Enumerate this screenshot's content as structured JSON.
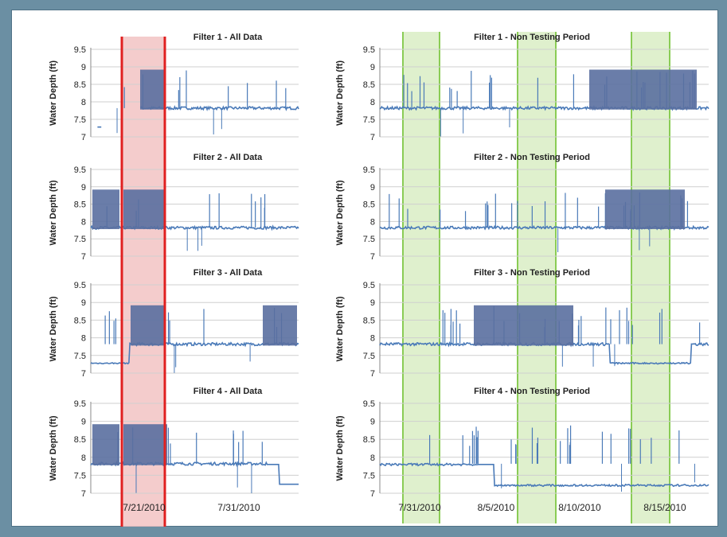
{
  "colors": {
    "series": "#4a7ab8",
    "dense": "#5a6fa0",
    "red_band_fill": "#f2c3c3",
    "red_band_edge": "#e02020",
    "green_band_fill": "#dbeec8",
    "green_band_edge": "#8acc55",
    "grid": "#cfcfcf"
  },
  "chart_data": {
    "type": "line",
    "y_label": "Water Depth (ft)",
    "y_ticks": [
      "9.5",
      "9",
      "8.5",
      "8",
      "7.5",
      "7"
    ],
    "ylim": [
      7,
      9.5
    ],
    "left_x_ticks": [
      "7/21/2010",
      "7/31/2010"
    ],
    "right_x_ticks": [
      "7/31/2010",
      "8/5/2010",
      "8/10/2010",
      "8/15/2010"
    ],
    "panels": [
      {
        "column": "left",
        "row": 0,
        "title": "Filter 1 - All Data"
      },
      {
        "column": "left",
        "row": 1,
        "title": "Filter 2 - All Data"
      },
      {
        "column": "left",
        "row": 2,
        "title": "Filter 3 - All Data"
      },
      {
        "column": "left",
        "row": 3,
        "title": "Filter 4 - All Data"
      },
      {
        "column": "right",
        "row": 0,
        "title": "Filter 1 - Non Testing Period"
      },
      {
        "column": "right",
        "row": 1,
        "title": "Filter 2 - Non Testing Period"
      },
      {
        "column": "right",
        "row": 2,
        "title": "Filter 3 - Non Testing Period"
      },
      {
        "column": "right",
        "row": 3,
        "title": "Filter 4 - Non Testing Period"
      }
    ]
  }
}
